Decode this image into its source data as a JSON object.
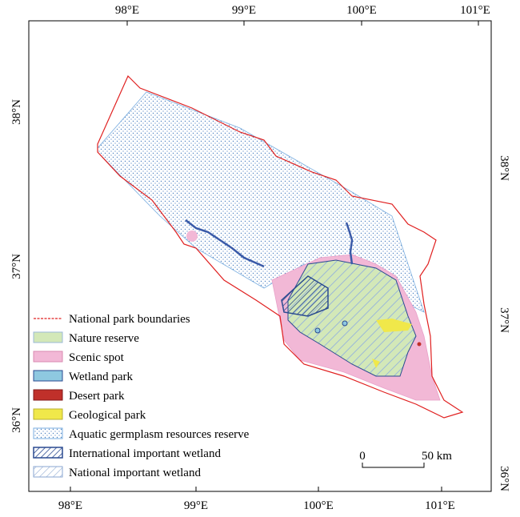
{
  "map": {
    "top_ticks": [
      "98°E",
      "99°E",
      "100°E",
      "101°E"
    ],
    "bottom_ticks": [
      "98°E",
      "99°E",
      "100°E",
      "101°E"
    ],
    "left_ticks": [
      "38°N",
      "37°N",
      "36°N"
    ],
    "right_ticks": [
      "38°N",
      "37°N",
      "36°N"
    ],
    "legend": [
      "National park boundaries",
      "Nature reserve",
      "Scenic spot",
      "Wetland park",
      "Desert park",
      "Geological park",
      "Aquatic germplasm resources reserve",
      "International important wetland",
      "National important wetland"
    ],
    "scale_bar": {
      "start": "0",
      "end": "50 km"
    }
  }
}
